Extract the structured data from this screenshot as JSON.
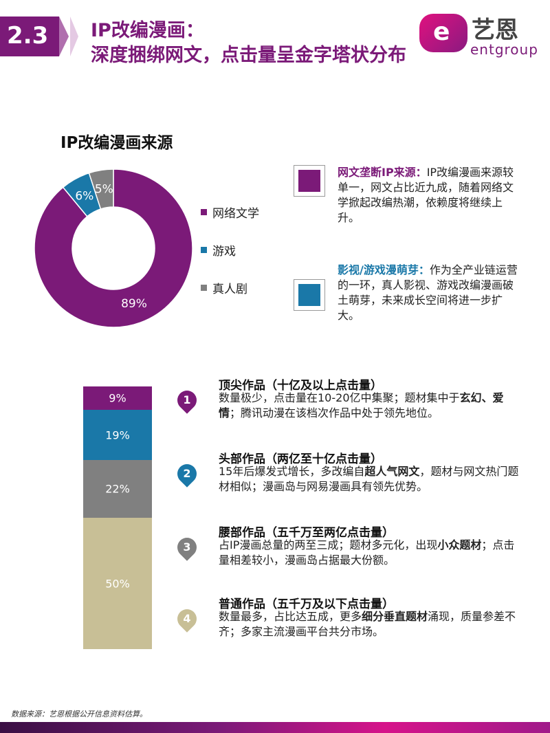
{
  "header": {
    "section_number": "2.3",
    "title_line1": "IP改编漫画：",
    "title_line2": "深度捆绑网文，点击量呈金字塔状分布"
  },
  "logo": {
    "mark": "e",
    "cn": "艺恩",
    "en": "entgroup"
  },
  "donut": {
    "title": "IP改编漫画来源"
  },
  "callouts": [
    {
      "heading": "网文垄断IP来源：",
      "body": "IP改编漫画来源较单一，网文占比近九成，随着网络文学掀起改编热潮，依赖度将继续上升。",
      "color": "#7b1a78"
    },
    {
      "heading": "影视/游戏漫萌芽：",
      "body": "作为全产业链运营的一环，真人影视、游戏改编漫画破土萌芽，未来成长空间将进一步扩大。",
      "color": "#1a78a8"
    }
  ],
  "tiers": [
    {
      "num": "1",
      "color": "#7b1a78",
      "title": "顶尖作品（十亿及以上点击量）",
      "desc_parts": [
        "数量极少，点击量在10-20亿中集聚；题材集中于",
        "玄幻、爱情",
        "；腾讯动漫在该档次作品中处于领先地位。"
      ]
    },
    {
      "num": "2",
      "color": "#1a78a8",
      "title": "头部作品（两亿至十亿点击量）",
      "desc_parts": [
        "15年后爆发式增长，多改编自",
        "超人气网文",
        "，题材与网文热门题材相似；漫画岛与网易漫画具有领先优势。"
      ]
    },
    {
      "num": "3",
      "color": "#808080",
      "title": "腰部作品（五千万至两亿点击量）",
      "desc_parts": [
        "占IP漫画总量的两至三成；题材多元化，出现",
        "小众题材",
        "；点击量相差较小，漫画岛占据最大份额。"
      ]
    },
    {
      "num": "4",
      "color": "#c8bf96",
      "title": "普通作品（五千万及以下点击量）",
      "desc_parts": [
        "数量最多，占比达五成，更多",
        "细分垂直题材",
        "涌现，质量参差不齐；多家主流漫画平台共分市场。"
      ]
    }
  ],
  "source_note": "数据来源：艺恩根据公开信息资料估算。",
  "chart_data": [
    {
      "type": "pie",
      "title": "IP改编漫画来源",
      "categories": [
        "网络文学",
        "游戏",
        "真人剧"
      ],
      "values": [
        89,
        6,
        5
      ],
      "labels": [
        "89%",
        "6%",
        "5%"
      ],
      "colors": [
        "#7b1a78",
        "#1a78a8",
        "#808080"
      ],
      "legend_position": "right",
      "donut": true
    },
    {
      "type": "bar",
      "stacked": true,
      "categories": [
        "顶尖作品",
        "头部作品",
        "腰部作品",
        "普通作品"
      ],
      "values": [
        9,
        19,
        22,
        50
      ],
      "labels": [
        "9%",
        "19%",
        "22%",
        "50%"
      ],
      "colors": [
        "#7b1a78",
        "#1a78a8",
        "#808080",
        "#c8bf96"
      ]
    }
  ]
}
